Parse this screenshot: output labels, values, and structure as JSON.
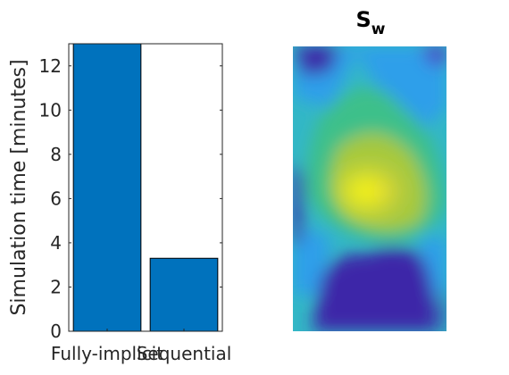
{
  "chart_data": [
    {
      "type": "bar",
      "categories": [
        "Fully-implicit",
        "Sequential"
      ],
      "values": [
        13.0,
        3.3
      ],
      "ylabel": "Simulation time [minutes]",
      "ylim": [
        0,
        13
      ],
      "yticks": [
        "0",
        "2",
        "4",
        "6",
        "8",
        "10",
        "12"
      ],
      "bar_color": "#0072BD",
      "grid": false
    },
    {
      "type": "heatmap",
      "title": "S",
      "title_subscript": "w",
      "colormap": "parula",
      "colors": {
        "low": "#3e26a8",
        "mid_low": "#2f9fea",
        "mid": "#33c4a4",
        "mid_high": "#a4c840",
        "high": "#f8fa0d",
        "peak": "#fcd82f"
      }
    }
  ]
}
